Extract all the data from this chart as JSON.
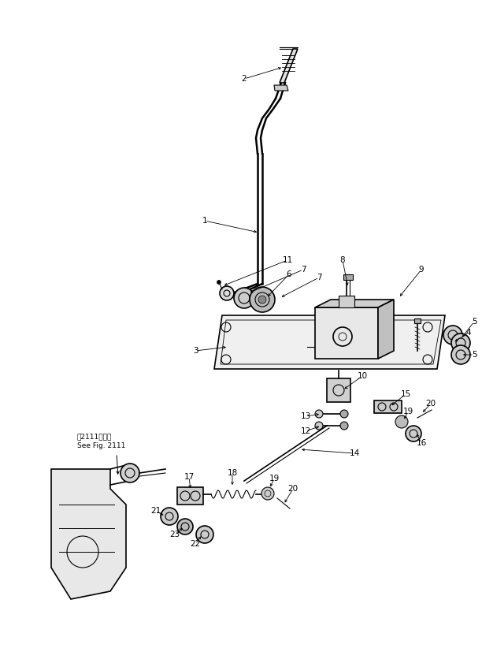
{
  "bg_color": "#ffffff",
  "line_color": "#000000",
  "fig_width": 6.12,
  "fig_height": 8.41,
  "dpi": 100,
  "annotation_text": "第2111図参照\nSee Fig. 2111"
}
